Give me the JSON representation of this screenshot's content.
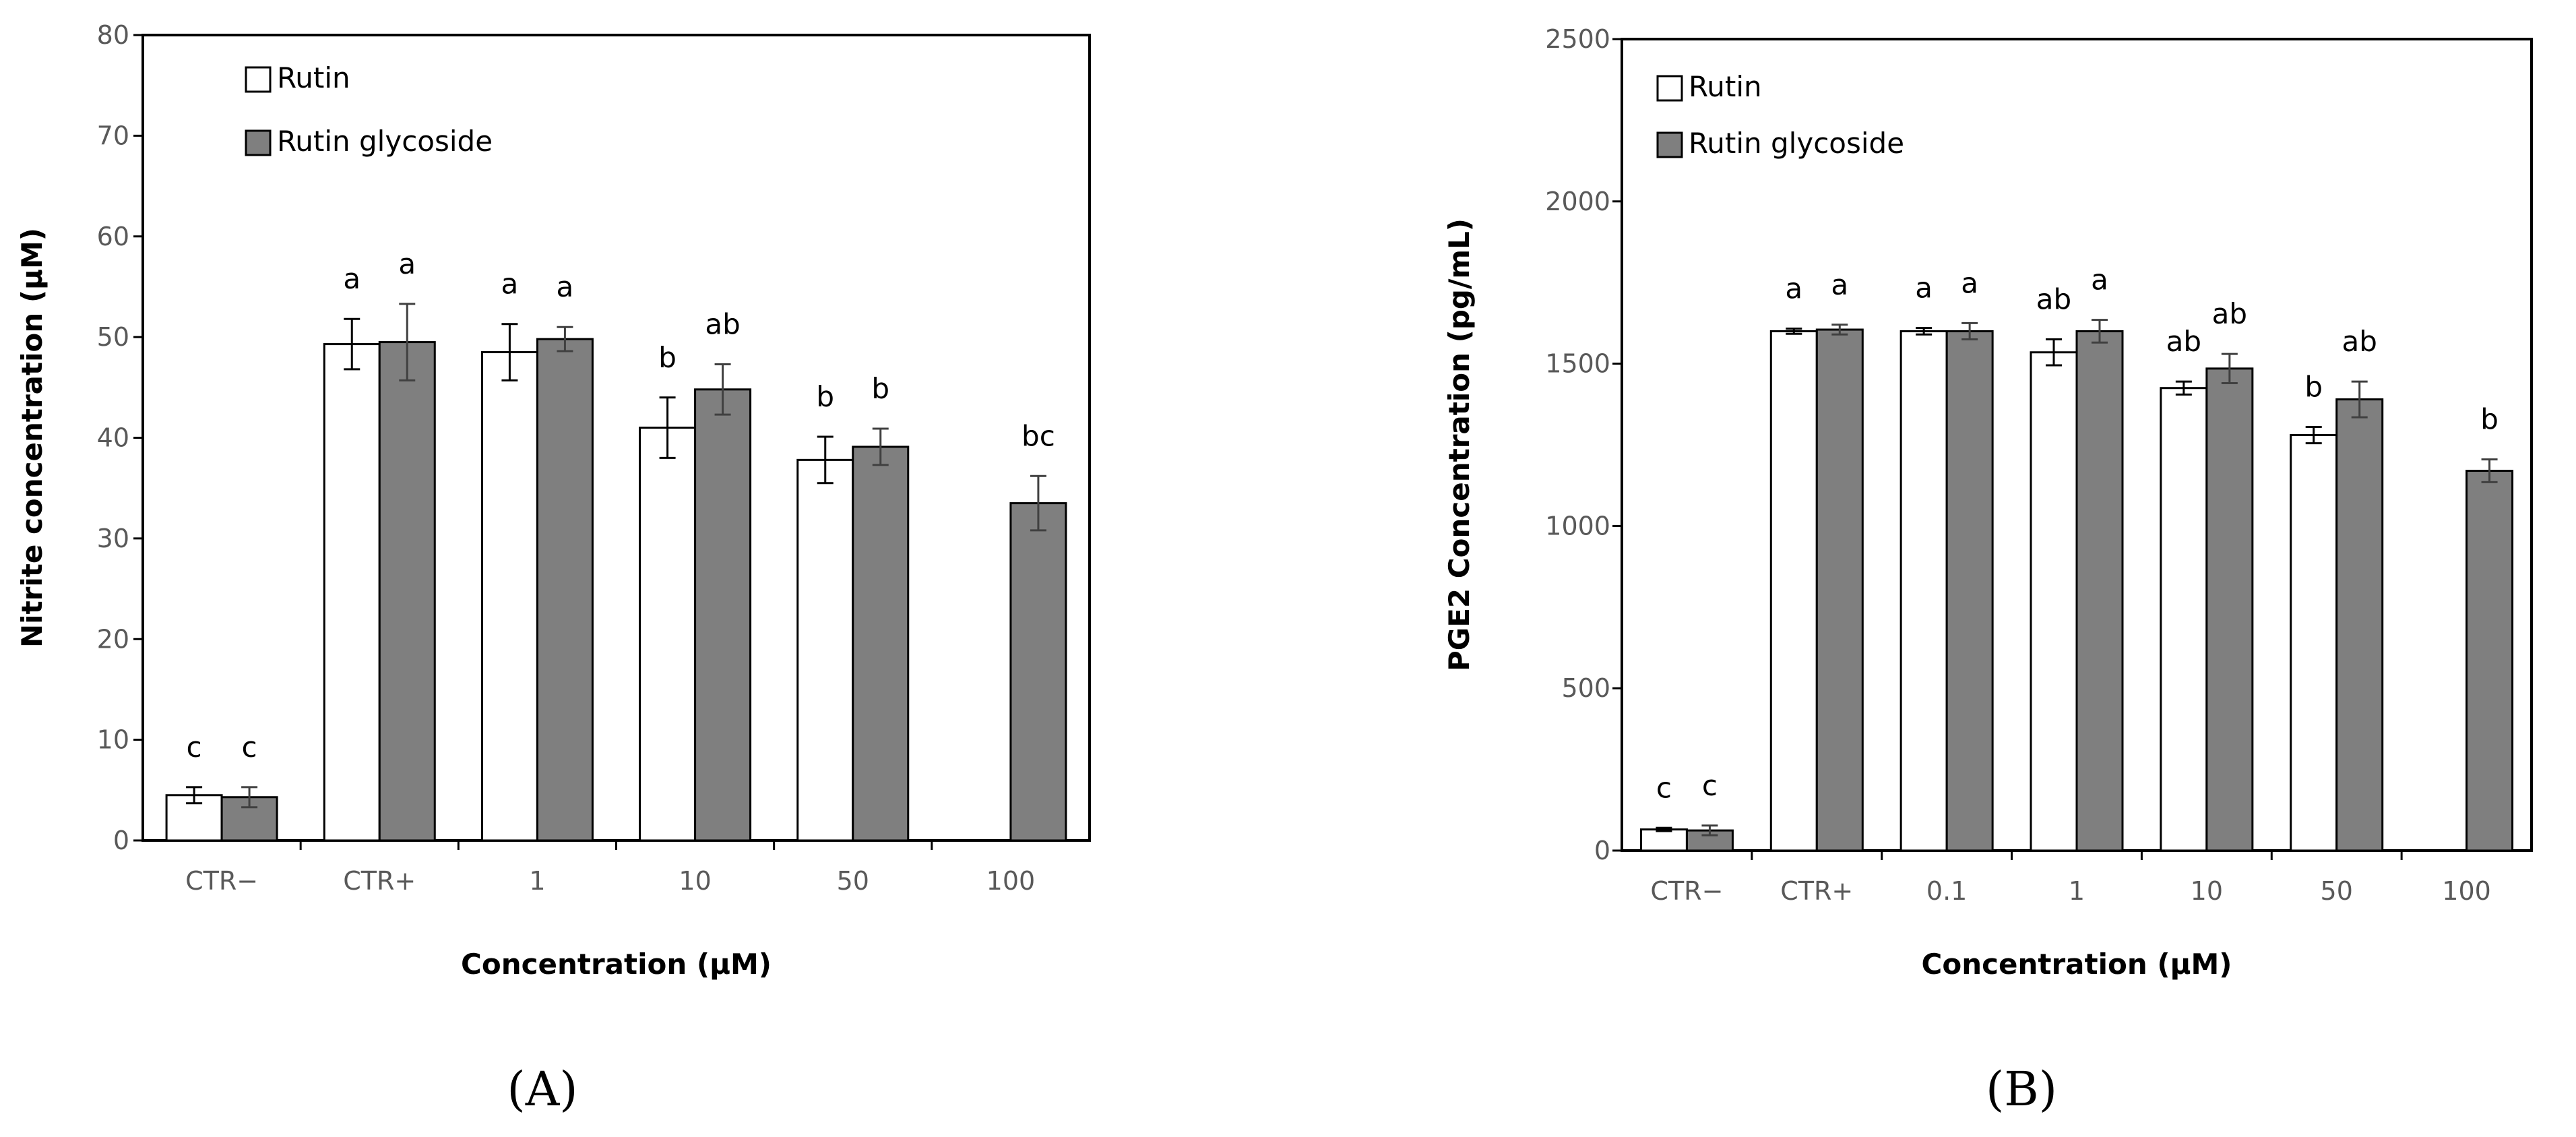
{
  "chart_data": [
    {
      "type": "bar",
      "panel": "A",
      "panel_label": "(A)",
      "categories": [
        "CTR−",
        "CTR+",
        "1",
        "10",
        "50",
        "100"
      ],
      "series": [
        {
          "name": "Rutin",
          "color": "#ffffff",
          "values": [
            4.5,
            49.3,
            48.5,
            41.0,
            37.8,
            null
          ],
          "errors": [
            0.8,
            2.5,
            2.8,
            3.0,
            2.3,
            null
          ]
        },
        {
          "name": "Rutin glycoside",
          "color": "#7f7f7f",
          "values": [
            4.3,
            49.5,
            49.8,
            44.8,
            39.1,
            33.5
          ],
          "errors": [
            1.0,
            3.8,
            1.2,
            2.5,
            1.8,
            2.7
          ]
        }
      ],
      "letters": [
        [
          "c",
          "c"
        ],
        [
          "a",
          "a"
        ],
        [
          "a",
          "a"
        ],
        [
          "b",
          "ab"
        ],
        [
          "b",
          "b"
        ],
        [
          null,
          "bc"
        ]
      ],
      "xlabel": "Concentration (µM)",
      "ylabel": "Nitrite concentration (µM)",
      "ylim": [
        0,
        80
      ],
      "yticks": [
        0,
        10,
        20,
        30,
        40,
        50,
        60,
        70,
        80
      ],
      "legend": [
        "Rutin",
        "Rutin glycoside"
      ],
      "legend_position": "top-left"
    },
    {
      "type": "bar",
      "panel": "B",
      "panel_label": "(B)",
      "categories": [
        "CTR−",
        "CTR+",
        "0.1",
        "1",
        "10",
        "50",
        "100"
      ],
      "series": [
        {
          "name": "Rutin",
          "color": "#ffffff",
          "values": [
            65,
            1600,
            1600,
            1535,
            1425,
            1280,
            null
          ],
          "errors": [
            5,
            8,
            10,
            40,
            20,
            25,
            null
          ]
        },
        {
          "name": "Rutin glycoside",
          "color": "#7f7f7f",
          "values": [
            62,
            1605,
            1600,
            1600,
            1485,
            1390,
            1170
          ],
          "errors": [
            15,
            15,
            25,
            35,
            45,
            55,
            35
          ]
        }
      ],
      "letters": [
        [
          "c",
          "c"
        ],
        [
          "a",
          "a"
        ],
        [
          "a",
          "a"
        ],
        [
          "ab",
          "a"
        ],
        [
          "ab",
          "ab"
        ],
        [
          "b",
          "ab"
        ],
        [
          null,
          "b"
        ]
      ],
      "xlabel": "Concentration (µM)",
      "ylabel": "PGE2 Concentration (pg/mL)",
      "ylim": [
        0,
        2500
      ],
      "yticks": [
        0,
        500,
        1000,
        1500,
        2000,
        2500
      ],
      "legend": [
        "Rutin",
        "Rutin glycoside"
      ],
      "legend_position": "top-left"
    }
  ]
}
